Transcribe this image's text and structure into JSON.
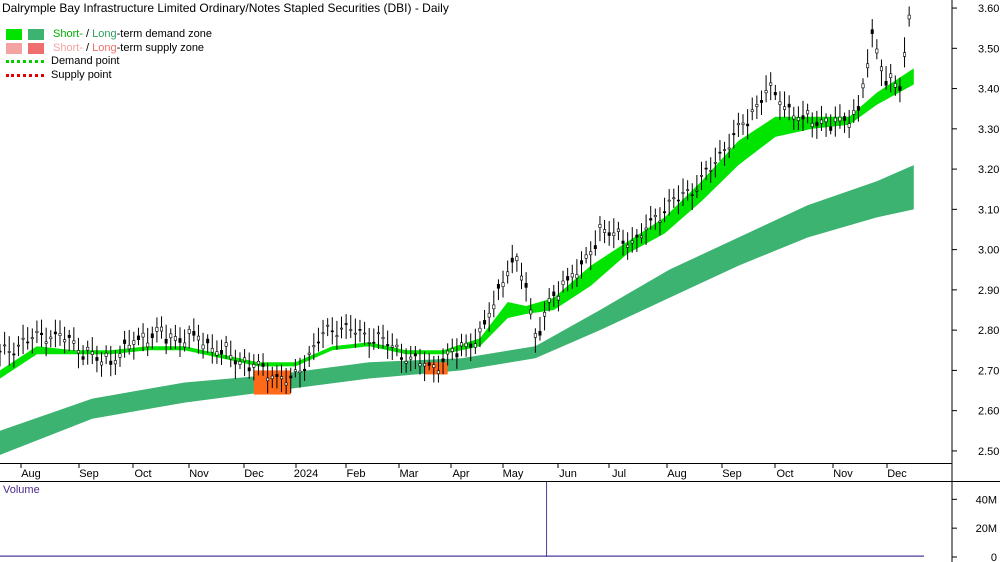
{
  "title": "Dalrymple Bay Infrastructure Limited Ordinary/Notes Stapled Securities (DBI) - Daily",
  "legend": {
    "demand_zone_prefix": "Short-",
    "demand_zone_sep": " / ",
    "demand_zone_mid": "Long",
    "demand_zone_suffix": "-term demand zone",
    "supply_zone_prefix": "Short-",
    "supply_zone_sep": " / ",
    "supply_zone_mid": "Long",
    "supply_zone_suffix": "-term supply zone",
    "demand_point": "Demand point",
    "supply_point": "Supply point"
  },
  "colors": {
    "short_demand": "#00e400",
    "long_demand": "#3cb371",
    "short_supply": "#f4a3a3",
    "long_supply": "#ef6f6f",
    "short_supply_text": "#f4a3a3",
    "long_supply_text": "#ef6f6f",
    "demand_text": "#00b000",
    "long_demand_text": "#2e9e5e",
    "orange_zone": "#ff6a1a",
    "volume": "#4b3a9c"
  },
  "volume_panel": {
    "label": "Volume",
    "ticks": [
      "40M",
      "20M",
      "0"
    ]
  },
  "chart_data": {
    "type": "bar",
    "title": "Dalrymple Bay Infrastructure Limited Ordinary/Notes Stapled Securities (DBI) - Daily",
    "x_labels": [
      "Aug",
      "Sep",
      "Oct",
      "Nov",
      "Dec",
      "2024",
      "Feb",
      "Mar",
      "Apr",
      "May",
      "Jun",
      "Jul",
      "Aug",
      "Sep",
      "Oct",
      "Nov",
      "Dec"
    ],
    "y_ticks": [
      "3.60",
      "3.50",
      "3.40",
      "3.30",
      "3.20",
      "3.10",
      "3.00",
      "2.90",
      "2.80",
      "2.70",
      "2.60",
      "2.50"
    ],
    "ylim": [
      2.47,
      3.62
    ],
    "price_points": [
      [
        0,
        2.74
      ],
      [
        5,
        2.77
      ],
      [
        10,
        2.79
      ],
      [
        14,
        2.78
      ],
      [
        18,
        2.75
      ],
      [
        22,
        2.72
      ],
      [
        26,
        2.74
      ],
      [
        30,
        2.78
      ],
      [
        34,
        2.79
      ],
      [
        38,
        2.78
      ],
      [
        43,
        2.78
      ],
      [
        47,
        2.75
      ],
      [
        51,
        2.73
      ],
      [
        55,
        2.71
      ],
      [
        59,
        2.69
      ],
      [
        63,
        2.67
      ],
      [
        66,
        2.72
      ],
      [
        70,
        2.79
      ],
      [
        74,
        2.81
      ],
      [
        78,
        2.79
      ],
      [
        82,
        2.78
      ],
      [
        86,
        2.75
      ],
      [
        90,
        2.72
      ],
      [
        94,
        2.71
      ],
      [
        97,
        2.73
      ],
      [
        100,
        2.76
      ],
      [
        104,
        2.78
      ],
      [
        108,
        2.9
      ],
      [
        111,
        2.97
      ],
      [
        114,
        2.92
      ],
      [
        116,
        2.78
      ],
      [
        119,
        2.86
      ],
      [
        122,
        2.92
      ],
      [
        126,
        2.95
      ],
      [
        130,
        3.05
      ],
      [
        134,
        3.03
      ],
      [
        138,
        3.02
      ],
      [
        142,
        3.08
      ],
      [
        146,
        3.12
      ],
      [
        150,
        3.15
      ],
      [
        154,
        3.2
      ],
      [
        158,
        3.27
      ],
      [
        162,
        3.32
      ],
      [
        166,
        3.4
      ],
      [
        170,
        3.36
      ],
      [
        174,
        3.32
      ],
      [
        178,
        3.32
      ],
      [
        182,
        3.31
      ],
      [
        186,
        3.35
      ],
      [
        189,
        3.52
      ],
      [
        192,
        3.43
      ],
      [
        195,
        3.4
      ],
      [
        197,
        3.56
      ]
    ],
    "short_term_demand_zone": [
      [
        0,
        2.68,
        2.7
      ],
      [
        8,
        2.74,
        2.76
      ],
      [
        16,
        2.74,
        2.75
      ],
      [
        24,
        2.74,
        2.75
      ],
      [
        32,
        2.75,
        2.76
      ],
      [
        40,
        2.75,
        2.76
      ],
      [
        48,
        2.73,
        2.74
      ],
      [
        56,
        2.71,
        2.72
      ],
      [
        64,
        2.71,
        2.72
      ],
      [
        72,
        2.75,
        2.76
      ],
      [
        80,
        2.76,
        2.77
      ],
      [
        88,
        2.74,
        2.75
      ],
      [
        96,
        2.74,
        2.75
      ],
      [
        104,
        2.76,
        2.78
      ],
      [
        110,
        2.83,
        2.87
      ],
      [
        114,
        2.84,
        2.86
      ],
      [
        120,
        2.85,
        2.88
      ],
      [
        128,
        2.91,
        2.96
      ],
      [
        136,
        2.99,
        3.02
      ],
      [
        144,
        3.04,
        3.08
      ],
      [
        152,
        3.12,
        3.17
      ],
      [
        160,
        3.21,
        3.27
      ],
      [
        168,
        3.28,
        3.33
      ],
      [
        176,
        3.3,
        3.33
      ],
      [
        184,
        3.31,
        3.33
      ],
      [
        190,
        3.36,
        3.39
      ],
      [
        198,
        3.41,
        3.45
      ]
    ],
    "long_term_demand_zone": [
      [
        0,
        2.49,
        2.55
      ],
      [
        20,
        2.58,
        2.63
      ],
      [
        40,
        2.62,
        2.67
      ],
      [
        60,
        2.65,
        2.69
      ],
      [
        80,
        2.68,
        2.72
      ],
      [
        100,
        2.7,
        2.73
      ],
      [
        116,
        2.73,
        2.76
      ],
      [
        130,
        2.8,
        2.85
      ],
      [
        145,
        2.88,
        2.95
      ],
      [
        160,
        2.96,
        3.03
      ],
      [
        175,
        3.03,
        3.11
      ],
      [
        190,
        3.08,
        3.17
      ],
      [
        198,
        3.1,
        3.21
      ]
    ],
    "orange_zones": [
      {
        "from": 55,
        "to": 63,
        "low": 2.64,
        "high": 2.7
      },
      {
        "from": 92,
        "to": 97,
        "low": 2.69,
        "high": 2.72
      }
    ],
    "volume": {
      "ylim": [
        0,
        52
      ],
      "unit": "M",
      "spike_index": 118,
      "spike_value": 52,
      "base_value": 0.6
    },
    "grid": false,
    "legend_position": "top-left"
  }
}
